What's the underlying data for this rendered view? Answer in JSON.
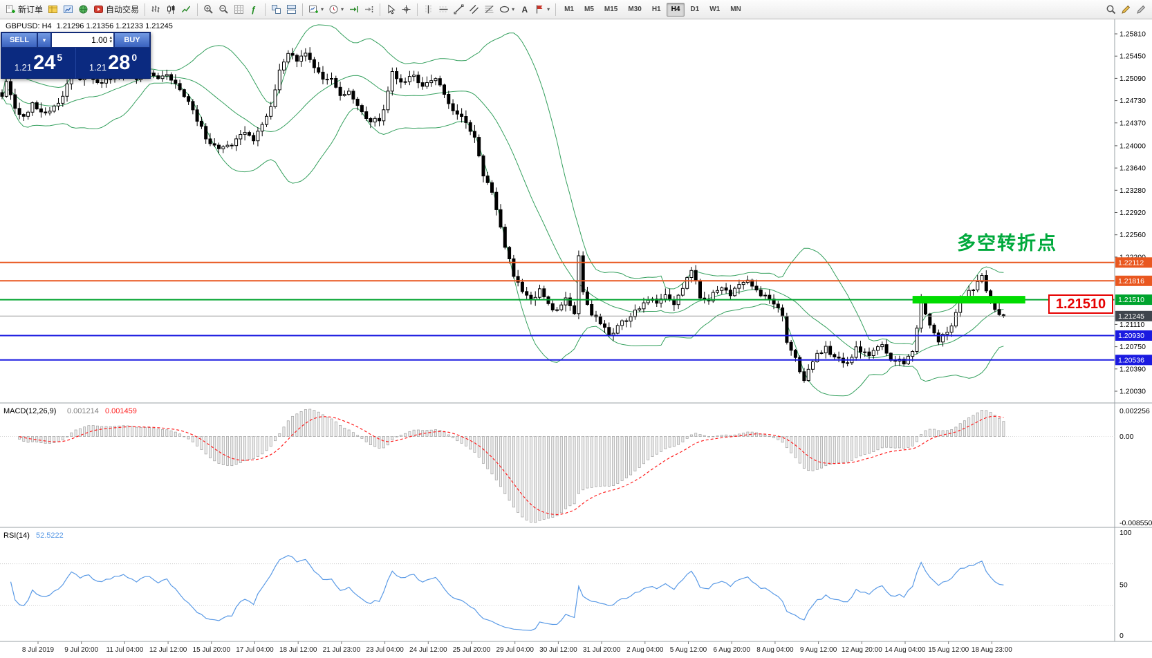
{
  "toolbar": {
    "groups": [
      {
        "name": "trading",
        "items": [
          {
            "name": "new-order-button",
            "icon": "neworder",
            "label": "新订单"
          },
          {
            "name": "profiles-button",
            "icon": "profiles"
          },
          {
            "name": "charts-window-button",
            "icon": "charts"
          },
          {
            "name": "terminal-button",
            "icon": "world"
          },
          {
            "name": "autotrading-button",
            "icon": "autotrade",
            "label": "自动交易"
          }
        ]
      },
      {
        "name": "chart-types",
        "items": [
          {
            "name": "bar-chart-button",
            "icon": "bars"
          },
          {
            "name": "candlestick-chart-button",
            "icon": "candle"
          },
          {
            "name": "line-chart-button",
            "icon": "linechart"
          }
        ]
      },
      {
        "name": "zoom-grid",
        "items": [
          {
            "name": "zoom-in-button",
            "icon": "zoomin"
          },
          {
            "name": "zoom-out-button",
            "icon": "zoomout"
          },
          {
            "name": "grid-button",
            "icon": "gridicon"
          },
          {
            "name": "indicators-button",
            "icon": "fx"
          }
        ]
      },
      {
        "name": "windows",
        "items": [
          {
            "name": "tile-windows-button",
            "icon": "tile"
          },
          {
            "name": "cascade-windows-button",
            "icon": "tile2"
          }
        ]
      },
      {
        "name": "chart-tools",
        "items": [
          {
            "name": "new-chart-button",
            "icon": "chartplus",
            "caret": true
          },
          {
            "name": "period-button",
            "icon": "clock",
            "caret": true
          },
          {
            "name": "auto-scroll-button",
            "icon": "autoscroll"
          },
          {
            "name": "chart-shift-button",
            "icon": "shiftend"
          }
        ]
      },
      {
        "name": "cursor-tools",
        "items": [
          {
            "name": "cursor-button",
            "icon": "cursor"
          },
          {
            "name": "crosshair-button",
            "icon": "crosshair"
          }
        ]
      },
      {
        "name": "draw-tools",
        "items": [
          {
            "name": "vertical-line-button",
            "icon": "vline"
          },
          {
            "name": "horizontal-line-button",
            "icon": "hline"
          },
          {
            "name": "trendline-button",
            "icon": "tline"
          },
          {
            "name": "channel-button",
            "icon": "channel"
          },
          {
            "name": "fibonacci-button",
            "icon": "fibo"
          },
          {
            "name": "shapes-button",
            "icon": "shapes",
            "caret": true
          },
          {
            "name": "text-button",
            "icon": "textA"
          },
          {
            "name": "arrows-button",
            "icon": "flag",
            "caret": true
          }
        ]
      },
      {
        "name": "timeframes",
        "items": [
          {
            "name": "tf-m1",
            "text": "M1"
          },
          {
            "name": "tf-m5",
            "text": "M5"
          },
          {
            "name": "tf-m15",
            "text": "M15"
          },
          {
            "name": "tf-m30",
            "text": "M30"
          },
          {
            "name": "tf-h1",
            "text": "H1"
          },
          {
            "name": "tf-h4",
            "text": "H4",
            "active": true
          },
          {
            "name": "tf-d1",
            "text": "D1"
          },
          {
            "name": "tf-w1",
            "text": "W1"
          },
          {
            "name": "tf-mn",
            "text": "MN"
          }
        ]
      },
      {
        "name": "right-tools",
        "right": true,
        "items": [
          {
            "name": "search-button",
            "icon": "magnifier"
          },
          {
            "name": "edit-button",
            "icon": "pencil"
          },
          {
            "name": "edit-alt-button",
            "icon": "pencil2"
          }
        ]
      }
    ]
  },
  "chart": {
    "symbol_header": "GBPUSD: H4",
    "ohlc_text": "1.21296 1.21356 1.21233 1.21245"
  },
  "trade_panel": {
    "sell_label": "SELL",
    "buy_label": "BUY",
    "volume": "1.00",
    "sell_price": {
      "prefix": "1.21",
      "big": "24",
      "sup": "5"
    },
    "buy_price": {
      "prefix": "1.21",
      "big": "28",
      "sup": "0"
    }
  },
  "chart_data": {
    "type": "candlestick",
    "symbol": "GBPUSD",
    "timeframe": "H4",
    "ohlc": {
      "open": 1.21296,
      "high": 1.21356,
      "low": 1.21233,
      "close": 1.21245
    },
    "bar_count": 232,
    "annotation": {
      "text": "多空转折点",
      "color": "#00a93c"
    },
    "callout": {
      "text": "1.21510",
      "color": "#e60000"
    },
    "close_anchors": [
      [
        0,
        1.248
      ],
      [
        1,
        1.2508
      ],
      [
        3,
        1.2462
      ],
      [
        5,
        1.2445
      ],
      [
        7,
        1.2468
      ],
      [
        9,
        1.2452
      ],
      [
        12,
        1.2462
      ],
      [
        14,
        1.2478
      ],
      [
        16,
        1.2522
      ],
      [
        18,
        1.2505
      ],
      [
        20,
        1.2518
      ],
      [
        22,
        1.25
      ],
      [
        25,
        1.2512
      ],
      [
        28,
        1.2522
      ],
      [
        31,
        1.251
      ],
      [
        33,
        1.2518
      ],
      [
        36,
        1.2506
      ],
      [
        38,
        1.2512
      ],
      [
        41,
        1.2492
      ],
      [
        43,
        1.247
      ],
      [
        45,
        1.2442
      ],
      [
        47,
        1.2415
      ],
      [
        50,
        1.2392
      ],
      [
        53,
        1.2404
      ],
      [
        56,
        1.2422
      ],
      [
        58,
        1.2412
      ],
      [
        60,
        1.2438
      ],
      [
        62,
        1.2462
      ],
      [
        64,
        1.2525
      ],
      [
        66,
        1.2548
      ],
      [
        68,
        1.254
      ],
      [
        70,
        1.255
      ],
      [
        72,
        1.2528
      ],
      [
        74,
        1.2506
      ],
      [
        76,
        1.2512
      ],
      [
        78,
        1.2482
      ],
      [
        80,
        1.2486
      ],
      [
        83,
        1.2452
      ],
      [
        85,
        1.244
      ],
      [
        87,
        1.2444
      ],
      [
        88,
        1.2462
      ],
      [
        90,
        1.252
      ],
      [
        92,
        1.2504
      ],
      [
        95,
        1.2512
      ],
      [
        97,
        1.2498
      ],
      [
        100,
        1.2508
      ],
      [
        102,
        1.2486
      ],
      [
        104,
        1.2458
      ],
      [
        107,
        1.2438
      ],
      [
        109,
        1.2415
      ],
      [
        111,
        1.2352
      ],
      [
        113,
        1.2328
      ],
      [
        114,
        1.2298
      ],
      [
        116,
        1.2238
      ],
      [
        118,
        1.2192
      ],
      [
        120,
        1.2163
      ],
      [
        122,
        1.2148
      ],
      [
        124,
        1.2166
      ],
      [
        126,
        1.2142
      ],
      [
        128,
        1.2132
      ],
      [
        130,
        1.215
      ],
      [
        132,
        1.2128
      ],
      [
        133,
        1.2226
      ],
      [
        134,
        1.216
      ],
      [
        136,
        1.2124
      ],
      [
        138,
        1.2115
      ],
      [
        140,
        1.2092
      ],
      [
        142,
        1.2106
      ],
      [
        144,
        1.212
      ],
      [
        146,
        1.2132
      ],
      [
        149,
        1.2154
      ],
      [
        151,
        1.2144
      ],
      [
        153,
        1.2157
      ],
      [
        155,
        1.2147
      ],
      [
        157,
        1.2166
      ],
      [
        159,
        1.2202
      ],
      [
        161,
        1.2157
      ],
      [
        163,
        1.2149
      ],
      [
        165,
        1.2169
      ],
      [
        168,
        1.2161
      ],
      [
        170,
        1.2173
      ],
      [
        172,
        1.2184
      ],
      [
        174,
        1.2163
      ],
      [
        176,
        1.2157
      ],
      [
        178,
        1.2143
      ],
      [
        180,
        1.2128
      ],
      [
        181,
        1.2083
      ],
      [
        183,
        1.2058
      ],
      [
        185,
        1.2018
      ],
      [
        186,
        1.204
      ],
      [
        188,
        1.2063
      ],
      [
        190,
        1.2072
      ],
      [
        192,
        1.2057
      ],
      [
        195,
        1.2047
      ],
      [
        197,
        1.2071
      ],
      [
        200,
        1.2061
      ],
      [
        203,
        1.2079
      ],
      [
        205,
        1.2057
      ],
      [
        208,
        1.2051
      ],
      [
        210,
        1.2066
      ],
      [
        212,
        1.2149
      ],
      [
        214,
        1.2111
      ],
      [
        216,
        1.2086
      ],
      [
        219,
        1.2109
      ],
      [
        221,
        1.2149
      ],
      [
        224,
        1.2169
      ],
      [
        226,
        1.2189
      ],
      [
        228,
        1.2147
      ],
      [
        229,
        1.2136
      ],
      [
        231,
        1.21245
      ]
    ],
    "price_axis_ticks": [
      "1.25810",
      "1.25450",
      "1.25090",
      "1.24730",
      "1.24370",
      "1.24000",
      "1.23640",
      "1.23280",
      "1.22920",
      "1.22560",
      "1.22200",
      "1.21110",
      "1.20750",
      "1.20390",
      "1.20030"
    ],
    "levels": [
      {
        "label": "1.22112",
        "price": 1.22112,
        "color": "#e9571f"
      },
      {
        "label": "1.21816",
        "price": 1.21816,
        "color": "#e9571f"
      },
      {
        "label": "1.21510",
        "price": 1.2151,
        "color": "#00a42e"
      },
      {
        "label": "1.20930",
        "price": 1.2093,
        "color": "#1a1ae0"
      },
      {
        "label": "1.20536",
        "price": 1.20536,
        "color": "#1a1ae0"
      }
    ],
    "current_price": {
      "label": "1.21245",
      "price": 1.21245,
      "line_color": "#9a9a9a",
      "badge_color": "#3f454d"
    },
    "highlight_zone": {
      "price": 1.2151,
      "bar_start": 210,
      "bar_end": 236,
      "color": "#00dc00"
    },
    "time_axis": [
      "8 Jul 2019",
      "9 Jul 20:00",
      "11 Jul 04:00",
      "12 Jul 12:00",
      "15 Jul 20:00",
      "17 Jul 04:00",
      "18 Jul 12:00",
      "21 Jul 23:00",
      "23 Jul 04:00",
      "24 Jul 12:00",
      "25 Jul 20:00",
      "29 Jul 04:00",
      "30 Jul 12:00",
      "31 Jul 20:00",
      "2 Aug 04:00",
      "5 Aug 12:00",
      "6 Aug 20:00",
      "8 Aug 04:00",
      "9 Aug 12:00",
      "12 Aug 20:00",
      "14 Aug 04:00",
      "15 Aug 12:00",
      "18 Aug 23:00"
    ],
    "indicators": {
      "bollinger": {
        "period": 20,
        "deviation": 2,
        "color": "#35a05e"
      },
      "macd": {
        "name": "MACD(12,26,9)",
        "value_main": "0.001214",
        "value_signal": "0.001459",
        "axis_max": "0.002256",
        "axis_zero": "0.00",
        "axis_min": "-0.008550",
        "hist_color": "#ececec",
        "hist_stroke": "#a0a0a0",
        "signal_color": "#ff1e1e"
      },
      "rsi": {
        "name": "RSI(14)",
        "value": "52.5222",
        "axis": [
          "100",
          "50",
          "0"
        ],
        "levels": [
          30,
          70
        ],
        "color": "#5a9ae6"
      }
    }
  }
}
